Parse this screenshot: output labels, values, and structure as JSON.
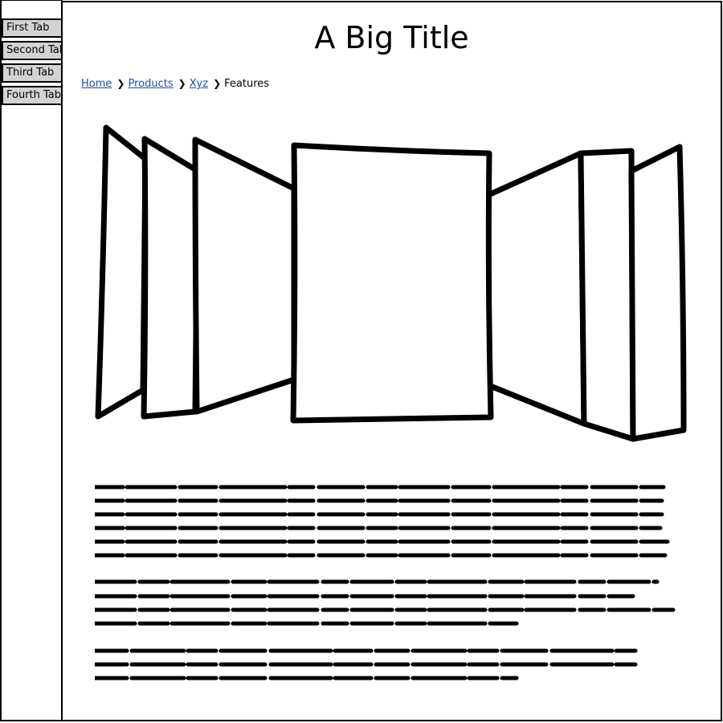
{
  "tabs": [
    {
      "label": "First Tab"
    },
    {
      "label": "Second Tab"
    },
    {
      "label": "Third Tab"
    },
    {
      "label": "Fourth Tab"
    }
  ],
  "header": {
    "title": "A Big Title"
  },
  "breadcrumb": {
    "items": [
      {
        "label": "Home",
        "link": true
      },
      {
        "label": "Products",
        "link": true
      },
      {
        "label": "Xyz",
        "link": true
      },
      {
        "label": "Features",
        "link": false
      }
    ],
    "separator_icon": "chevron-right-icon"
  },
  "coverflow": {
    "item_count": 7,
    "icon": "image-placeholder"
  },
  "paragraphs": [
    {
      "lines": 6
    },
    {
      "lines": 4
    },
    {
      "lines": 3
    }
  ],
  "colors": {
    "tab_background": "#d3d3d3",
    "link": "#1f4e9c",
    "border": "#000000"
  }
}
